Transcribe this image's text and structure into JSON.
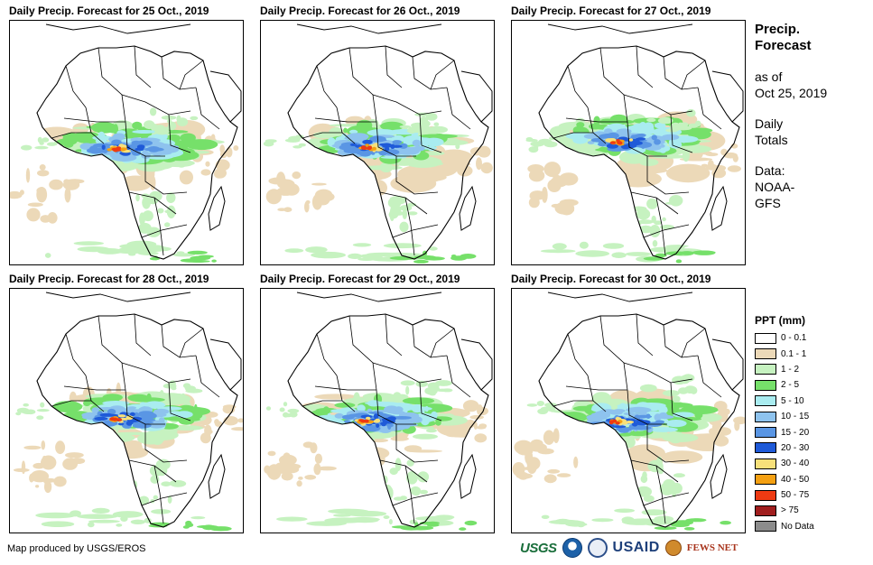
{
  "panels": [
    {
      "title": "Daily Precip. Forecast for 25 Oct., 2019"
    },
    {
      "title": "Daily Precip. Forecast for 26 Oct., 2019"
    },
    {
      "title": "Daily Precip. Forecast for 27 Oct., 2019"
    },
    {
      "title": "Daily Precip. Forecast for 28 Oct., 2019"
    },
    {
      "title": "Daily Precip. Forecast for 29 Oct., 2019"
    },
    {
      "title": "Daily Precip. Forecast for 30 Oct., 2019"
    }
  ],
  "sidebar": {
    "title_line1": "Precip.",
    "title_line2": "Forecast",
    "asof_line1": "as of",
    "asof_line2": "Oct 25, 2019",
    "totals_line1": "Daily",
    "totals_line2": "Totals",
    "data_line1": "Data:",
    "data_line2": "NOAA-",
    "data_line3": "GFS"
  },
  "legend": {
    "title": "PPT (mm)",
    "items": [
      {
        "label": "0 - 0.1",
        "color": "#ffffff"
      },
      {
        "label": "0.1 - 1",
        "color": "#ecd9b8"
      },
      {
        "label": "1 - 2",
        "color": "#c6f2c0"
      },
      {
        "label": "2 - 5",
        "color": "#76e06a"
      },
      {
        "label": "5 - 10",
        "color": "#a9ecf0"
      },
      {
        "label": "10 - 15",
        "color": "#8ec3ee"
      },
      {
        "label": "15 - 20",
        "color": "#5a96e4"
      },
      {
        "label": "20 - 30",
        "color": "#1f5ad8"
      },
      {
        "label": "30 - 40",
        "color": "#f7e07a"
      },
      {
        "label": "40 - 50",
        "color": "#f4a012"
      },
      {
        "label": "50 - 75",
        "color": "#ee3a12"
      },
      {
        "label": "> 75",
        "color": "#a01e1e"
      },
      {
        "label": "No Data",
        "color": "#8c8c8c"
      }
    ]
  },
  "footer": {
    "credit": "Map produced by USGS/EROS",
    "logo_usgs": "USGS",
    "logo_usaid": "USAID",
    "logo_fews": "FEWS NET"
  }
}
